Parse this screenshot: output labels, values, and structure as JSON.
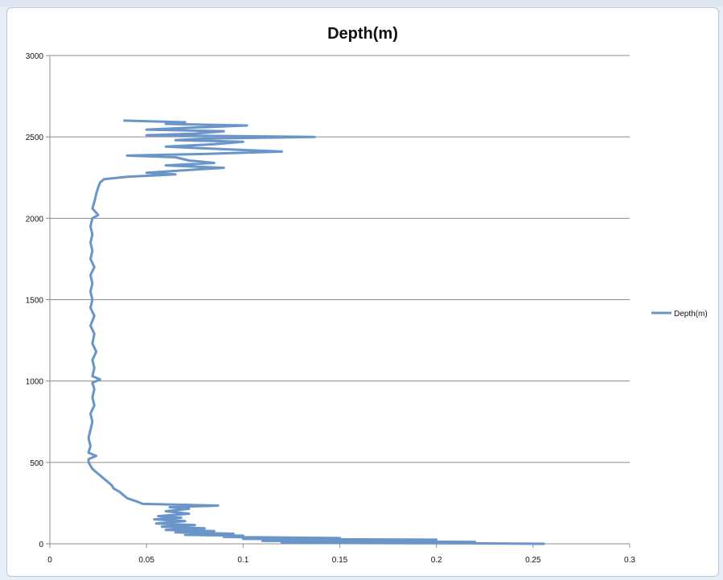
{
  "chart_data": {
    "type": "line",
    "title": "Depth(m)",
    "xlabel": "",
    "ylabel": "",
    "xlim": [
      0,
      0.3
    ],
    "ylim": [
      0,
      3000
    ],
    "x_ticks": [
      "0",
      "0.05",
      "0.1",
      "0.15",
      "0.2",
      "0.25",
      "0.3"
    ],
    "y_ticks": [
      "0",
      "500",
      "1000",
      "1500",
      "2000",
      "2500",
      "3000"
    ],
    "grid": "horizontal",
    "legend_position": "right",
    "series": [
      {
        "name": "Depth(m)",
        "color": "#6a95c8",
        "points": [
          [
            0.256,
            0
          ],
          [
            0.218,
            3
          ],
          [
            0.12,
            6
          ],
          [
            0.22,
            12
          ],
          [
            0.11,
            18
          ],
          [
            0.2,
            25
          ],
          [
            0.1,
            30
          ],
          [
            0.15,
            35
          ],
          [
            0.09,
            42
          ],
          [
            0.1,
            50
          ],
          [
            0.07,
            55
          ],
          [
            0.095,
            62
          ],
          [
            0.065,
            70
          ],
          [
            0.085,
            78
          ],
          [
            0.06,
            85
          ],
          [
            0.08,
            95
          ],
          [
            0.058,
            105
          ],
          [
            0.075,
            115
          ],
          [
            0.055,
            125
          ],
          [
            0.07,
            140
          ],
          [
            0.054,
            150
          ],
          [
            0.068,
            160
          ],
          [
            0.056,
            170
          ],
          [
            0.072,
            185
          ],
          [
            0.06,
            200
          ],
          [
            0.072,
            215
          ],
          [
            0.062,
            225
          ],
          [
            0.087,
            235
          ],
          [
            0.048,
            245
          ],
          [
            0.045,
            260
          ],
          [
            0.04,
            280
          ],
          [
            0.038,
            300
          ],
          [
            0.036,
            320
          ],
          [
            0.033,
            340
          ],
          [
            0.032,
            360
          ],
          [
            0.03,
            380
          ],
          [
            0.028,
            400
          ],
          [
            0.026,
            420
          ],
          [
            0.024,
            440
          ],
          [
            0.022,
            460
          ],
          [
            0.021,
            480
          ],
          [
            0.02,
            500
          ],
          [
            0.02,
            520
          ],
          [
            0.024,
            540
          ],
          [
            0.02,
            560
          ],
          [
            0.021,
            600
          ],
          [
            0.02,
            650
          ],
          [
            0.021,
            700
          ],
          [
            0.022,
            750
          ],
          [
            0.021,
            800
          ],
          [
            0.023,
            850
          ],
          [
            0.022,
            900
          ],
          [
            0.023,
            950
          ],
          [
            0.022,
            990
          ],
          [
            0.026,
            1010
          ],
          [
            0.022,
            1030
          ],
          [
            0.023,
            1080
          ],
          [
            0.022,
            1130
          ],
          [
            0.024,
            1180
          ],
          [
            0.022,
            1230
          ],
          [
            0.023,
            1290
          ],
          [
            0.021,
            1340
          ],
          [
            0.023,
            1400
          ],
          [
            0.021,
            1450
          ],
          [
            0.022,
            1500
          ],
          [
            0.021,
            1550
          ],
          [
            0.022,
            1600
          ],
          [
            0.021,
            1650
          ],
          [
            0.023,
            1700
          ],
          [
            0.021,
            1750
          ],
          [
            0.022,
            1800
          ],
          [
            0.021,
            1850
          ],
          [
            0.022,
            1900
          ],
          [
            0.021,
            1950
          ],
          [
            0.022,
            2000
          ],
          [
            0.025,
            2020
          ],
          [
            0.022,
            2060
          ],
          [
            0.023,
            2100
          ],
          [
            0.024,
            2150
          ],
          [
            0.025,
            2190
          ],
          [
            0.026,
            2220
          ],
          [
            0.028,
            2240
          ],
          [
            0.04,
            2255
          ],
          [
            0.065,
            2270
          ],
          [
            0.05,
            2280
          ],
          [
            0.07,
            2295
          ],
          [
            0.09,
            2310
          ],
          [
            0.06,
            2325
          ],
          [
            0.085,
            2340
          ],
          [
            0.072,
            2355
          ],
          [
            0.065,
            2375
          ],
          [
            0.04,
            2385
          ],
          [
            0.08,
            2395
          ],
          [
            0.12,
            2410
          ],
          [
            0.088,
            2425
          ],
          [
            0.06,
            2440
          ],
          [
            0.085,
            2455
          ],
          [
            0.1,
            2470
          ],
          [
            0.065,
            2480
          ],
          [
            0.08,
            2490
          ],
          [
            0.137,
            2500
          ],
          [
            0.05,
            2510
          ],
          [
            0.075,
            2520
          ],
          [
            0.09,
            2535
          ],
          [
            0.05,
            2545
          ],
          [
            0.07,
            2555
          ],
          [
            0.102,
            2570
          ],
          [
            0.06,
            2580
          ],
          [
            0.07,
            2590
          ],
          [
            0.038,
            2600
          ]
        ]
      }
    ]
  }
}
